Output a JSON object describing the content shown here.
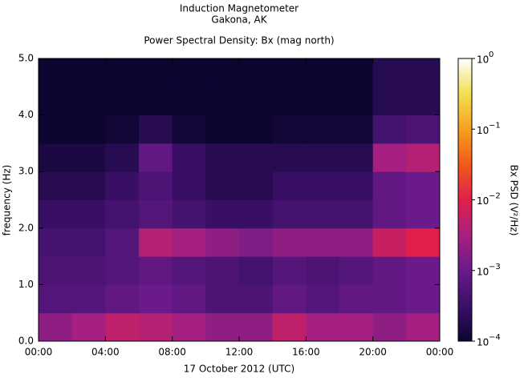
{
  "chart_data": {
    "type": "heatmap",
    "title": "Induction Magnetometer",
    "subtitle": "Gakona, AK",
    "plot_title": "Power Spectral Density: Bx (mag north)",
    "x_label": "17 October 2012 (UTC)",
    "y_label": "frequency (Hz)",
    "colorbar_label": "Bx PSD (V²/Hz)",
    "x": [
      0,
      2,
      4,
      6,
      8,
      10,
      12,
      14,
      16,
      18,
      20,
      22,
      24
    ],
    "y": [
      0,
      0.5,
      1,
      1.5,
      2,
      2.5,
      3,
      3.5,
      4,
      4.5,
      5
    ],
    "z": [
      [
        0.002,
        0.003,
        0.005,
        0.004,
        0.003,
        0.002,
        0.002,
        0.005,
        0.003,
        0.003,
        0.002,
        0.003
      ],
      [
        0.0006,
        0.0006,
        0.0008,
        0.001,
        0.0008,
        0.0005,
        0.0005,
        0.0008,
        0.0006,
        0.0008,
        0.0008,
        0.001
      ],
      [
        0.0005,
        0.0005,
        0.0006,
        0.0008,
        0.0006,
        0.0005,
        0.0004,
        0.0006,
        0.0005,
        0.0006,
        0.0008,
        0.001
      ],
      [
        0.0004,
        0.0004,
        0.0006,
        0.004,
        0.003,
        0.002,
        0.0015,
        0.002,
        0.002,
        0.002,
        0.006,
        0.01
      ],
      [
        0.0003,
        0.0003,
        0.0004,
        0.0006,
        0.0004,
        0.0003,
        0.0003,
        0.0004,
        0.0004,
        0.0004,
        0.0008,
        0.001
      ],
      [
        0.0002,
        0.0002,
        0.0003,
        0.0005,
        0.0003,
        0.0002,
        0.0002,
        0.0003,
        0.0003,
        0.0003,
        0.0008,
        0.001
      ],
      [
        0.00015,
        0.00015,
        0.0002,
        0.0008,
        0.0003,
        0.0002,
        0.0002,
        0.0002,
        0.0002,
        0.0002,
        0.003,
        0.004
      ],
      [
        0.0001,
        0.0001,
        0.00012,
        0.0002,
        0.00012,
        0.0001,
        0.0001,
        0.00012,
        0.00012,
        0.00012,
        0.0004,
        0.0005
      ],
      [
        0.0001,
        0.0001,
        0.0001,
        0.0001,
        0.0001,
        0.0001,
        0.0001,
        0.0001,
        0.0001,
        0.0001,
        0.0002,
        0.0002
      ],
      [
        0.0001,
        0.0001,
        0.0001,
        0.0001,
        0.0001,
        0.0001,
        0.0001,
        0.0001,
        0.0001,
        0.0001,
        0.0002,
        0.0002
      ]
    ],
    "xlim": [
      0,
      24
    ],
    "xticks": [
      {
        "value": 0,
        "label": "00:00"
      },
      {
        "value": 4,
        "label": "04:00"
      },
      {
        "value": 8,
        "label": "08:00"
      },
      {
        "value": 12,
        "label": "12:00"
      },
      {
        "value": 16,
        "label": "16:00"
      },
      {
        "value": 20,
        "label": "20:00"
      },
      {
        "value": 24,
        "label": "00:00"
      }
    ],
    "ylim": [
      0,
      5
    ],
    "yticks": [
      {
        "value": 0,
        "label": "0.0"
      },
      {
        "value": 1,
        "label": "1.0"
      },
      {
        "value": 2,
        "label": "2.0"
      },
      {
        "value": 3,
        "label": "3.0"
      },
      {
        "value": 4,
        "label": "4.0"
      },
      {
        "value": 5,
        "label": "5.0"
      }
    ],
    "clim": [
      0.0001,
      1
    ],
    "color_scale": "log",
    "cticks": [
      {
        "value": 0.0001,
        "label": "10",
        "sup": "−4"
      },
      {
        "value": 0.001,
        "label": "10",
        "sup": "−3"
      },
      {
        "value": 0.01,
        "label": "10",
        "sup": "−2"
      },
      {
        "value": 0.1,
        "label": "10",
        "sup": "−1"
      },
      {
        "value": 1,
        "label": "10",
        "sup": "0"
      }
    ],
    "colormap": [
      "#0c0530",
      "#3a1068",
      "#6a1a8a",
      "#a8207f",
      "#e0204a",
      "#f05a1c",
      "#f7a020",
      "#f0e050",
      "#ffffff"
    ]
  }
}
